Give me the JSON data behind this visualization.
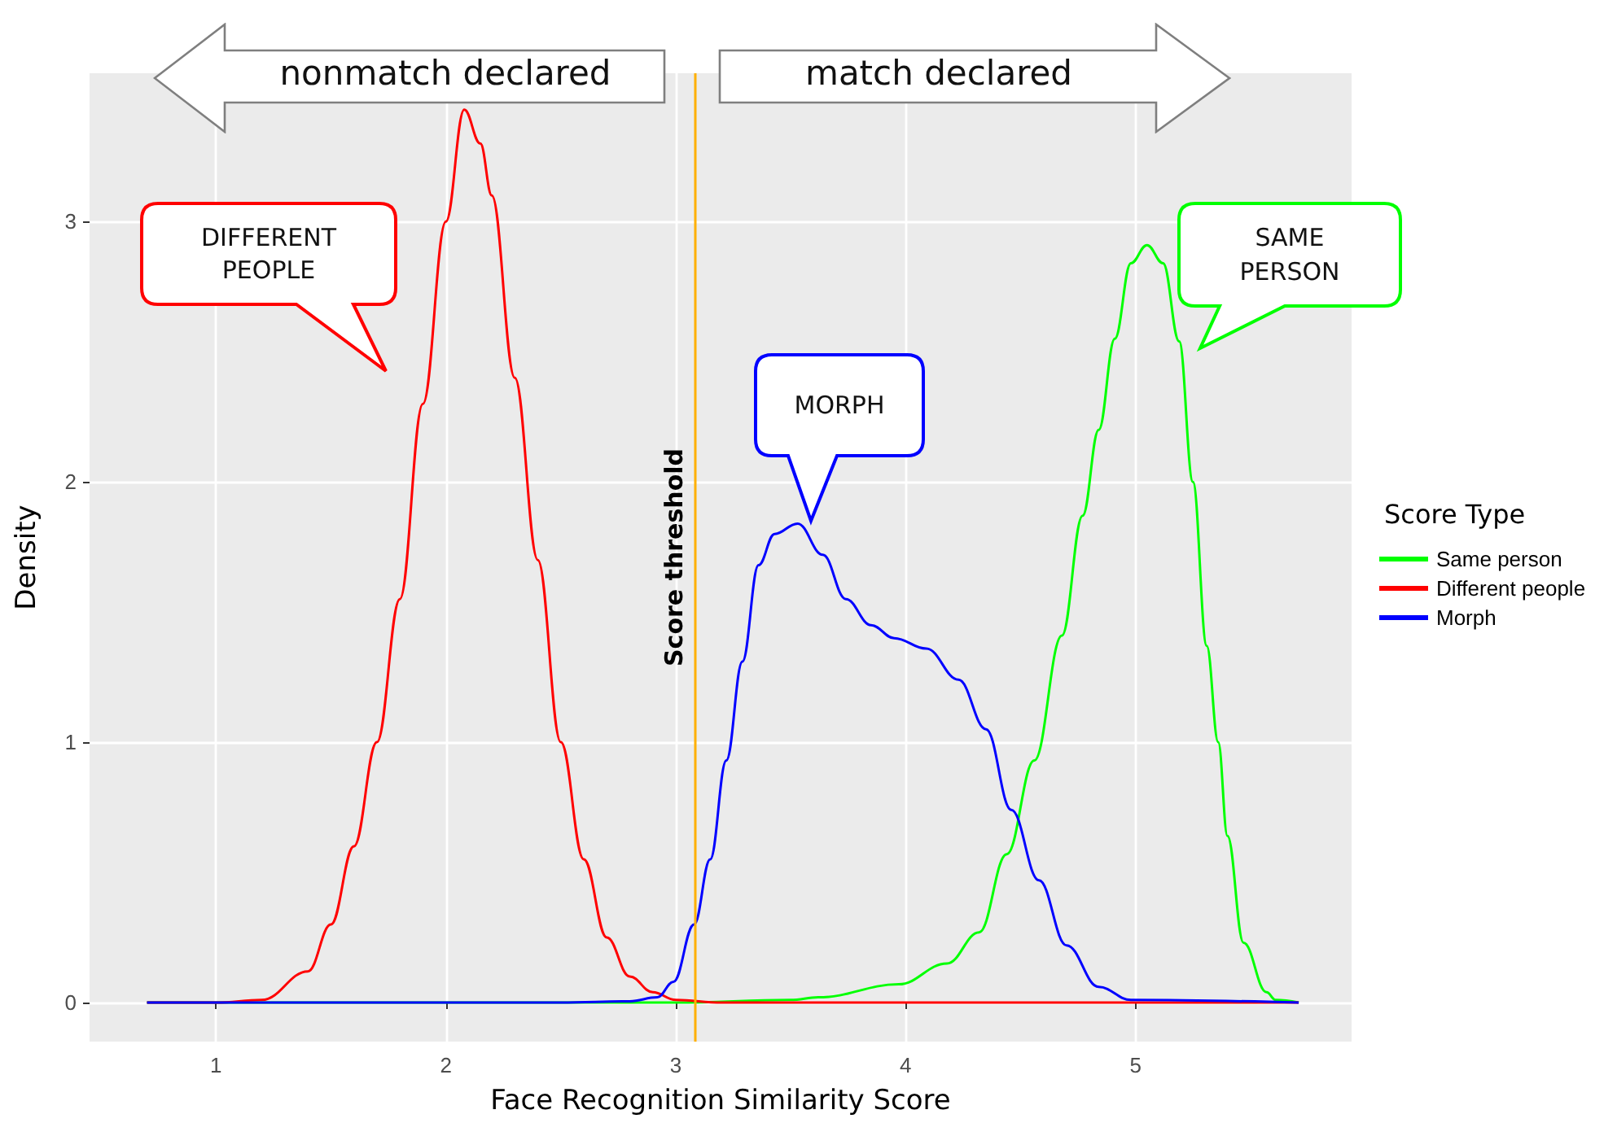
{
  "chart_data": {
    "type": "line",
    "xlabel": "Face Recognition Similarity Score",
    "ylabel": "Density",
    "legend_title": "Score Type",
    "legend": "right",
    "grid": true,
    "xlim": [
      0.45,
      5.94
    ],
    "ylim": [
      -0.15,
      3.57
    ],
    "xticks": [
      1,
      2,
      3,
      4,
      5
    ],
    "yticks": [
      0,
      1,
      2,
      3
    ],
    "series": [
      {
        "name": "Same person",
        "color": "#00ff00",
        "x": [
          0.7,
          3.0,
          3.5,
          3.62,
          3.97,
          4.18,
          4.32,
          4.44,
          4.56,
          4.68,
          4.77,
          4.84,
          4.91,
          4.98,
          5.05,
          5.12,
          5.19,
          5.25,
          5.31,
          5.36,
          5.4,
          5.47,
          5.57,
          5.61,
          5.71
        ],
        "values": [
          0,
          0,
          0.01,
          0.02,
          0.07,
          0.15,
          0.27,
          0.57,
          0.93,
          1.41,
          1.87,
          2.2,
          2.55,
          2.84,
          2.91,
          2.84,
          2.54,
          2.0,
          1.37,
          1.0,
          0.64,
          0.23,
          0.04,
          0.01,
          0
        ]
      },
      {
        "name": "Different people",
        "color": "#ff0000",
        "x": [
          0.7,
          1.0,
          1.2,
          1.4,
          1.5,
          1.6,
          1.7,
          1.8,
          1.9,
          2.0,
          2.08,
          2.15,
          2.2,
          2.3,
          2.4,
          2.5,
          2.6,
          2.7,
          2.8,
          2.9,
          3.0,
          3.2,
          5.71
        ],
        "values": [
          0,
          0,
          0.01,
          0.12,
          0.3,
          0.6,
          1.0,
          1.55,
          2.3,
          3.0,
          3.43,
          3.3,
          3.1,
          2.4,
          1.7,
          1.0,
          0.55,
          0.25,
          0.1,
          0.04,
          0.01,
          0,
          0
        ]
      },
      {
        "name": "Morph",
        "color": "#0000ff",
        "x": [
          0.7,
          2.5,
          2.8,
          2.92,
          2.99,
          3.08,
          3.15,
          3.22,
          3.29,
          3.36,
          3.43,
          3.53,
          3.64,
          3.74,
          3.85,
          3.95,
          4.09,
          4.23,
          4.35,
          4.46,
          4.58,
          4.7,
          4.84,
          4.98,
          5.71
        ],
        "values": [
          0,
          0,
          0.005,
          0.02,
          0.08,
          0.3,
          0.55,
          0.93,
          1.31,
          1.68,
          1.8,
          1.84,
          1.72,
          1.55,
          1.45,
          1.4,
          1.36,
          1.24,
          1.05,
          0.74,
          0.47,
          0.22,
          0.06,
          0.01,
          0
        ]
      }
    ],
    "ref_lines": [
      {
        "axis": "x",
        "value": 3.08,
        "label": "Score threshold",
        "color": "#ffb000"
      }
    ],
    "annotations": [
      "nonmatch declared",
      "match declared",
      "DIFFERENT PEOPLE",
      "MORPH",
      "SAME PERSON"
    ]
  }
}
